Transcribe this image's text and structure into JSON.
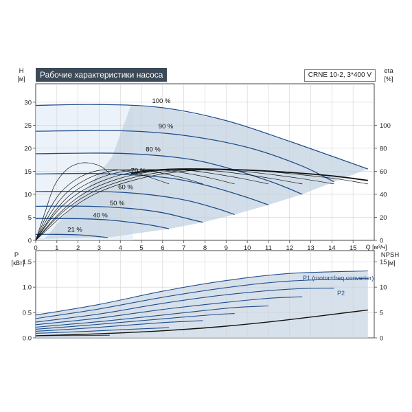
{
  "header": {
    "title": "Рабочие характеристики насоса",
    "model": "CRNE 10-2, 3*400 V"
  },
  "colors": {
    "curve": "#1f4d8c",
    "envelope_fill": "#c9d7e4",
    "light_fill": "#e6eff8",
    "lines": "#111111"
  },
  "chart_data": [
    {
      "type": "line",
      "title": "",
      "xlabel": "Q [м³/ч]",
      "xlim": [
        0,
        16
      ],
      "x_ticks": [
        "0",
        "1",
        "2",
        "3",
        "4",
        "5",
        "6",
        "7",
        "8",
        "9",
        "10",
        "11",
        "12",
        "13",
        "14",
        "15"
      ],
      "left_axis": {
        "label_top": "H",
        "label_unit": "[м]",
        "lim": [
          0,
          34
        ],
        "ticks": [
          "0",
          "5",
          "10",
          "15",
          "20",
          "25",
          "30"
        ]
      },
      "right_axis": {
        "label_top": "eta",
        "label_unit": "[%]",
        "lim": [
          0,
          136
        ],
        "ticks": [
          "0",
          "20",
          "40",
          "60",
          "80",
          "100"
        ]
      },
      "grid": true,
      "speed_labels": [
        "100 %",
        "90 %",
        "80 %",
        "70 %",
        "60 %",
        "50 %",
        "40 %",
        "21 %"
      ],
      "head_curves": [
        {
          "speed": "100 %",
          "x": [
            0,
            3,
            6,
            9,
            12,
            15.7
          ],
          "y": [
            29.3,
            29.5,
            28.8,
            26,
            21.5,
            15.5
          ]
        },
        {
          "speed": "90 %",
          "x": [
            0,
            4,
            7,
            10,
            12.5,
            14.1
          ],
          "y": [
            23.7,
            23.8,
            22.8,
            20.2,
            16.3,
            12.7
          ]
        },
        {
          "speed": "80 %",
          "x": [
            0,
            4,
            7,
            9,
            11.2,
            12.6
          ],
          "y": [
            18.8,
            18.9,
            17.8,
            15.8,
            12.6,
            10
          ]
        },
        {
          "speed": "70 %",
          "x": [
            0,
            3,
            6,
            8,
            9.8,
            11
          ],
          "y": [
            14.4,
            14.5,
            13.7,
            12,
            9.6,
            7.7
          ]
        },
        {
          "speed": "60 %",
          "x": [
            0,
            3,
            5,
            7,
            8.5,
            9.4
          ],
          "y": [
            10.6,
            10.6,
            10.1,
            8.8,
            7,
            5.6
          ]
        },
        {
          "speed": "50 %",
          "x": [
            0,
            2.5,
            4.5,
            6,
            7.1,
            7.9
          ],
          "y": [
            7.4,
            7.4,
            6.9,
            6,
            4.8,
            3.9
          ]
        },
        {
          "speed": "40 %",
          "x": [
            0,
            2,
            3.5,
            5,
            5.8,
            6.3
          ],
          "y": [
            4.7,
            4.7,
            4.4,
            3.6,
            3,
            2.5
          ]
        },
        {
          "speed": "21 %",
          "x": [
            0,
            1,
            2,
            2.8,
            3.4
          ],
          "y": [
            1.3,
            1.3,
            1.2,
            0.9,
            0.6
          ]
        }
      ],
      "efficiency_curves": [
        {
          "x": [
            0,
            1.5,
            3,
            5,
            7,
            8.8,
            10.5,
            12.5,
            14.2,
            15.7
          ],
          "y": [
            0,
            25,
            42,
            54,
            60,
            61.5,
            60.5,
            57,
            53.5,
            49
          ]
        },
        {
          "x": [
            0,
            1.3,
            2.7,
            4.5,
            6.3,
            8,
            9.5,
            11.2,
            12.6,
            14.1
          ],
          "y": [
            0,
            25,
            42,
            54,
            60,
            61.5,
            60.5,
            57,
            53.5,
            49
          ]
        },
        {
          "x": [
            0,
            1.2,
            2.4,
            4,
            5.6,
            7.1,
            8.4,
            10,
            11.2,
            12.6
          ],
          "y": [
            0,
            25,
            42,
            54,
            60,
            61.5,
            60.5,
            57,
            53.5,
            49
          ]
        },
        {
          "x": [
            0,
            1,
            2.1,
            3.5,
            4.9,
            6.2,
            7.4,
            8.7,
            9.8,
            11
          ],
          "y": [
            0,
            25,
            42,
            54,
            60,
            61.5,
            60.5,
            57,
            53.5,
            49
          ]
        },
        {
          "x": [
            0,
            0.9,
            1.8,
            3,
            4.2,
            5.3,
            6.3,
            7.5,
            8.4,
            9.4
          ],
          "y": [
            0,
            25,
            42,
            54,
            60,
            61.5,
            60.5,
            57,
            53.5,
            49
          ]
        },
        {
          "x": [
            0,
            0.75,
            1.5,
            2.5,
            3.5,
            4.4,
            5.3,
            6.3,
            7.1,
            7.9
          ],
          "y": [
            0,
            25,
            42,
            54,
            60,
            61.5,
            60.5,
            57,
            53.5,
            49
          ]
        },
        {
          "x": [
            0,
            0.6,
            1.2,
            2,
            2.8,
            3.5,
            4.2,
            5,
            5.6,
            6.3
          ],
          "y": [
            0,
            25,
            42,
            54,
            60,
            61.5,
            60.5,
            57,
            53.5,
            49
          ]
        },
        {
          "x": [
            0,
            0.45,
            0.9,
            1.5,
            2.1,
            2.6,
            3.1,
            3.5
          ],
          "y": [
            0,
            25,
            48,
            62,
            67,
            67,
            64,
            58
          ]
        }
      ],
      "efficiency_envelope": {
        "x": [
          4.5,
          6,
          8,
          10,
          12,
          14,
          15.7
        ],
        "y": [
          58,
          61.5,
          62,
          61,
          59,
          56,
          52
        ]
      }
    },
    {
      "type": "line",
      "title": "",
      "xlim": [
        0,
        16
      ],
      "left_axis": {
        "label_top": "P",
        "label_unit": "[кВт]",
        "lim": [
          0,
          1.72
        ],
        "ticks": [
          "0.0",
          "0.5",
          "1.0",
          "1.5"
        ]
      },
      "right_axis": {
        "label_top": "NPSH",
        "label_unit": "[м]",
        "lim": [
          0,
          17.2
        ],
        "ticks": [
          "0",
          "5",
          "10",
          "15"
        ]
      },
      "grid": true,
      "series_labels": [
        "P1 (motor+freq.converter)",
        "P2"
      ],
      "power_curves": [
        {
          "x": [
            0,
            3,
            6,
            9,
            12,
            15.7
          ],
          "y": [
            0.45,
            0.66,
            0.92,
            1.13,
            1.27,
            1.32
          ]
        },
        {
          "x": [
            0,
            3,
            6,
            9,
            12,
            15.7
          ],
          "y": [
            0.38,
            0.57,
            0.8,
            0.99,
            1.12,
            1.17
          ]
        },
        {
          "x": [
            0,
            3,
            6,
            9,
            12,
            14.1
          ],
          "y": [
            0.31,
            0.47,
            0.68,
            0.85,
            0.96,
            0.98
          ]
        },
        {
          "x": [
            0,
            3,
            6,
            9,
            11,
            12.6
          ],
          "y": [
            0.26,
            0.39,
            0.56,
            0.7,
            0.78,
            0.81
          ]
        },
        {
          "x": [
            0,
            3,
            6,
            8,
            9.5,
            11
          ],
          "y": [
            0.21,
            0.32,
            0.45,
            0.54,
            0.6,
            0.63
          ]
        },
        {
          "x": [
            0,
            2.5,
            5,
            7,
            8.5,
            9.4
          ],
          "y": [
            0.17,
            0.25,
            0.34,
            0.41,
            0.46,
            0.48
          ]
        },
        {
          "x": [
            0,
            2,
            4,
            6,
            7.9
          ],
          "y": [
            0.13,
            0.18,
            0.24,
            0.3,
            0.34
          ]
        },
        {
          "x": [
            0,
            2,
            4,
            6.3
          ],
          "y": [
            0.09,
            0.12,
            0.16,
            0.2
          ]
        },
        {
          "x": [
            0,
            1.5,
            3.5
          ],
          "y": [
            0.04,
            0.045,
            0.05
          ]
        }
      ],
      "npsh_curve": {
        "x": [
          0,
          3,
          6,
          9,
          12,
          15.7
        ],
        "y": [
          0.4,
          0.8,
          1.4,
          2.3,
          3.6,
          5.5
        ]
      }
    }
  ]
}
